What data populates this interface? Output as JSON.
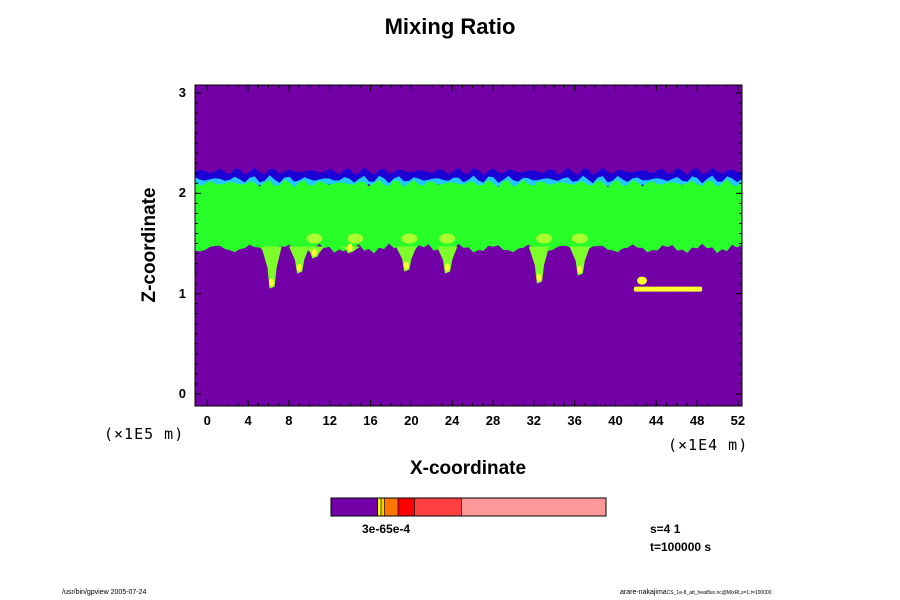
{
  "chart_data": {
    "type": "heatmap",
    "title": "Mixing Ratio",
    "xlabel": "X-coordinate",
    "ylabel": "Z-coordinate",
    "x_scale_label": "(×1E4 m)",
    "y_scale_label": "(×1E5 m)",
    "xlim": [
      -1.2,
      52.4
    ],
    "ylim": [
      -0.12,
      3.08
    ],
    "x_ticks": [
      "0",
      "4",
      "8",
      "12",
      "16",
      "20",
      "24",
      "28",
      "32",
      "36",
      "40",
      "44",
      "48",
      "52"
    ],
    "y_ticks": [
      "0",
      "1",
      "2",
      "3"
    ],
    "x_tick_values": [
      0,
      4,
      8,
      12,
      16,
      20,
      24,
      28,
      32,
      36,
      40,
      44,
      48,
      52
    ],
    "y_tick_values": [
      0,
      1,
      2,
      3
    ],
    "background_color": "#7300a6",
    "layers": [
      {
        "color": "#1b00d6",
        "z_bottom": 2.08,
        "z_top": 2.22
      },
      {
        "color": "#22c8ff",
        "z_bottom": 2.05,
        "z_top": 2.14
      },
      {
        "color": "#28ff28",
        "z_bottom": 1.45,
        "z_top": 2.1
      }
    ],
    "plumes": [
      {
        "x": 9.0,
        "z_bottom": 1.2
      },
      {
        "x": 10.5,
        "z_bottom": 1.35
      },
      {
        "x": 14.0,
        "z_bottom": 1.4
      },
      {
        "x": 19.5,
        "z_bottom": 1.22
      },
      {
        "x": 23.5,
        "z_bottom": 1.2
      },
      {
        "x": 32.5,
        "z_bottom": 1.1
      },
      {
        "x": 36.5,
        "z_bottom": 1.18
      },
      {
        "x": 6.3,
        "z_bottom": 1.05
      }
    ],
    "isolated_blob": {
      "x_start": 41.8,
      "x_end": 48.5,
      "z": 1.05,
      "color": "#ffff30"
    },
    "colorbar": {
      "colors": [
        "#7300a6",
        "#ffff00",
        "#ffcc00",
        "#ff7700",
        "#ff0000",
        "#ff4040",
        "#ff9898"
      ],
      "fractions": [
        0.17,
        0.012,
        0.012,
        0.05,
        0.06,
        0.17,
        0.526
      ],
      "tick_labels": "3e-65e-4"
    },
    "info_lines": [
      "s=4 1",
      "t=100000 s"
    ]
  },
  "footer": {
    "left": "/usr/bin/gpview 2005-07-24",
    "right": "arare-nakajima",
    "right_small": "CS_1e-8_att_heatflux.nc@MixRt,s=1,t=100000"
  }
}
